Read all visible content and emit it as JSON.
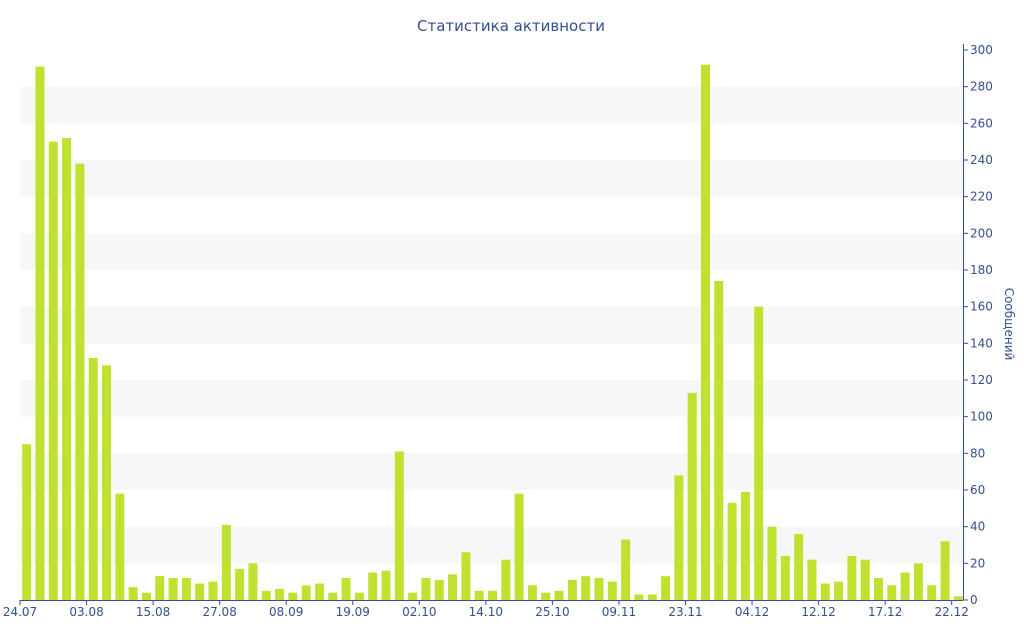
{
  "chart_data": {
    "type": "bar",
    "title": "Статистика активности",
    "xlabel": "",
    "ylabel": "Сообщений",
    "ylim": [
      0,
      300
    ],
    "y_ticks": [
      0,
      20,
      40,
      60,
      80,
      100,
      120,
      140,
      160,
      180,
      200,
      220,
      240,
      260,
      280,
      300
    ],
    "x_tick_labels": [
      "24.07",
      "03.08",
      "15.08",
      "27.08",
      "08.09",
      "19.09",
      "02.10",
      "14.10",
      "25.10",
      "09.11",
      "23.11",
      "04.12",
      "12.12",
      "17.12",
      "22.12"
    ],
    "values": [
      85,
      291,
      250,
      252,
      238,
      132,
      128,
      58,
      7,
      4,
      13,
      12,
      12,
      9,
      10,
      41,
      17,
      20,
      5,
      6,
      4,
      8,
      9,
      4,
      12,
      4,
      15,
      16,
      81,
      4,
      12,
      11,
      14,
      26,
      5,
      5,
      22,
      58,
      8,
      4,
      5,
      11,
      13,
      12,
      10,
      33,
      3,
      3,
      13,
      68,
      113,
      292,
      174,
      53,
      59,
      160,
      40,
      24,
      36,
      22,
      9,
      10,
      24,
      22,
      12,
      8,
      15,
      20,
      8,
      32,
      2
    ],
    "x_tick_positions": [
      0,
      5,
      10,
      15,
      20,
      25,
      30,
      35,
      40,
      45,
      50,
      55,
      60,
      65,
      70
    ],
    "grid": "alternating horizontal bands",
    "legend": "none",
    "y_axis_side": "right",
    "colors": {
      "bar": "#bfe230",
      "axis": "#33508f",
      "band": "#f7f7f7",
      "title": "#33508f"
    }
  }
}
